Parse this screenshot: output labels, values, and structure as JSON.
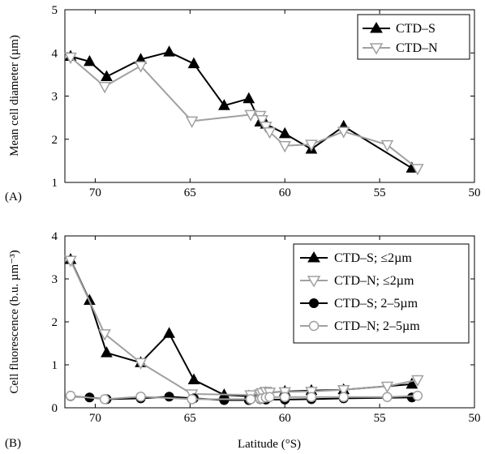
{
  "colors": {
    "black": "#000000",
    "gray": "#a0a0a0"
  },
  "chart_data": [
    {
      "panel": "(A)",
      "type": "line",
      "xlabel": "",
      "ylabel": "Mean cell diameter (µm)",
      "xlim": [
        71.6,
        50
      ],
      "ylim": [
        1,
        5
      ],
      "x_reversed": true,
      "xticks": [
        70,
        65,
        60,
        55,
        50
      ],
      "yticks": [
        1,
        2,
        3,
        4,
        5
      ],
      "legend_position": "top-right",
      "series": [
        {
          "name": "CTD–S",
          "color": "#000000",
          "marker": "triangle-up",
          "x": [
            71.3,
            70.3,
            69.4,
            67.6,
            66.1,
            64.8,
            63.2,
            61.9,
            61.3,
            61.0,
            60.0,
            58.6,
            56.9,
            53.3
          ],
          "y": [
            3.92,
            3.8,
            3.45,
            3.85,
            4.02,
            3.75,
            2.78,
            2.94,
            2.4,
            2.35,
            2.13,
            1.77,
            2.3,
            1.33
          ]
        },
        {
          "name": "CTD–N",
          "color": "#a0a0a0",
          "marker": "triangle-down",
          "x": [
            71.3,
            69.5,
            67.6,
            64.9,
            61.8,
            61.3,
            61.2,
            61.0,
            60.8,
            60.0,
            58.6,
            56.9,
            54.6,
            53.0
          ],
          "y": [
            3.9,
            3.22,
            3.7,
            2.42,
            2.57,
            2.55,
            2.45,
            2.3,
            2.17,
            1.85,
            1.88,
            2.18,
            1.87,
            1.32
          ]
        }
      ]
    },
    {
      "panel": "(B)",
      "type": "line",
      "xlabel": "Latitude (°S)",
      "ylabel": "Cell fluorescence (b.u.  µm⁻³)",
      "xlim": [
        71.6,
        50
      ],
      "ylim": [
        0,
        4
      ],
      "x_reversed": true,
      "xticks": [
        70,
        65,
        60,
        55,
        50
      ],
      "yticks": [
        0,
        1,
        2,
        3,
        4
      ],
      "legend_position": "top-right",
      "series": [
        {
          "name": "CTD–S; ≤2µm",
          "color": "#000000",
          "marker": "triangle-up",
          "x": [
            71.3,
            70.3,
            69.4,
            67.6,
            66.1,
            64.8,
            63.2,
            61.9,
            61.3,
            61.0,
            60.0,
            58.6,
            56.9,
            53.3
          ],
          "y": [
            3.45,
            2.5,
            1.28,
            1.05,
            1.73,
            0.65,
            0.3,
            0.27,
            0.32,
            0.35,
            0.38,
            0.4,
            0.42,
            0.55
          ]
        },
        {
          "name": "CTD–N; ≤2µm",
          "color": "#a0a0a0",
          "marker": "triangle-down",
          "x": [
            71.3,
            69.5,
            67.6,
            64.9,
            61.8,
            61.3,
            61.2,
            61.0,
            60.8,
            60.0,
            58.6,
            56.9,
            54.6,
            53.0
          ],
          "y": [
            3.43,
            1.72,
            1.05,
            0.32,
            0.3,
            0.32,
            0.35,
            0.38,
            0.36,
            0.37,
            0.38,
            0.42,
            0.5,
            0.65
          ]
        },
        {
          "name": "CTD–S; 2–5µm",
          "color": "#000000",
          "marker": "circle-filled",
          "x": [
            71.3,
            70.3,
            69.4,
            67.6,
            66.1,
            64.8,
            63.2,
            61.9,
            61.3,
            61.0,
            60.0,
            58.6,
            56.9,
            53.3
          ],
          "y": [
            0.27,
            0.24,
            0.2,
            0.22,
            0.26,
            0.22,
            0.18,
            0.18,
            0.2,
            0.19,
            0.19,
            0.2,
            0.22,
            0.24
          ]
        },
        {
          "name": "CTD–N; 2–5µm",
          "color": "#a0a0a0",
          "marker": "circle-open",
          "x": [
            71.3,
            69.5,
            67.6,
            64.9,
            61.8,
            61.3,
            61.2,
            61.0,
            60.8,
            60.0,
            58.6,
            56.9,
            54.6,
            53.0
          ],
          "y": [
            0.28,
            0.2,
            0.26,
            0.2,
            0.2,
            0.21,
            0.22,
            0.24,
            0.25,
            0.25,
            0.25,
            0.25,
            0.25,
            0.28
          ]
        }
      ]
    }
  ]
}
